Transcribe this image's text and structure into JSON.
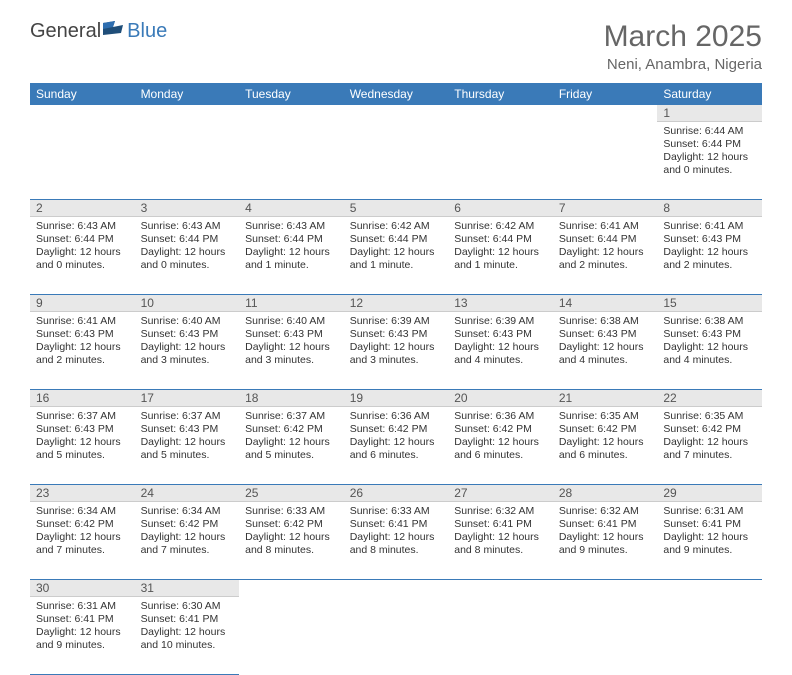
{
  "logo": {
    "general": "General",
    "blue": "Blue"
  },
  "header": {
    "month_title": "March 2025",
    "location": "Neni, Anambra, Nigeria"
  },
  "colors": {
    "header_bg": "#3a7ab8",
    "header_text": "#ffffff",
    "daynum_bg": "#e8e8e8",
    "row_border": "#3a7ab8",
    "text": "#333333"
  },
  "weekdays": [
    "Sunday",
    "Monday",
    "Tuesday",
    "Wednesday",
    "Thursday",
    "Friday",
    "Saturday"
  ],
  "weeks": [
    [
      null,
      null,
      null,
      null,
      null,
      null,
      {
        "n": "1",
        "sr": "Sunrise: 6:44 AM",
        "ss": "Sunset: 6:44 PM",
        "dl": "Daylight: 12 hours and 0 minutes."
      }
    ],
    [
      {
        "n": "2",
        "sr": "Sunrise: 6:43 AM",
        "ss": "Sunset: 6:44 PM",
        "dl": "Daylight: 12 hours and 0 minutes."
      },
      {
        "n": "3",
        "sr": "Sunrise: 6:43 AM",
        "ss": "Sunset: 6:44 PM",
        "dl": "Daylight: 12 hours and 0 minutes."
      },
      {
        "n": "4",
        "sr": "Sunrise: 6:43 AM",
        "ss": "Sunset: 6:44 PM",
        "dl": "Daylight: 12 hours and 1 minute."
      },
      {
        "n": "5",
        "sr": "Sunrise: 6:42 AM",
        "ss": "Sunset: 6:44 PM",
        "dl": "Daylight: 12 hours and 1 minute."
      },
      {
        "n": "6",
        "sr": "Sunrise: 6:42 AM",
        "ss": "Sunset: 6:44 PM",
        "dl": "Daylight: 12 hours and 1 minute."
      },
      {
        "n": "7",
        "sr": "Sunrise: 6:41 AM",
        "ss": "Sunset: 6:44 PM",
        "dl": "Daylight: 12 hours and 2 minutes."
      },
      {
        "n": "8",
        "sr": "Sunrise: 6:41 AM",
        "ss": "Sunset: 6:43 PM",
        "dl": "Daylight: 12 hours and 2 minutes."
      }
    ],
    [
      {
        "n": "9",
        "sr": "Sunrise: 6:41 AM",
        "ss": "Sunset: 6:43 PM",
        "dl": "Daylight: 12 hours and 2 minutes."
      },
      {
        "n": "10",
        "sr": "Sunrise: 6:40 AM",
        "ss": "Sunset: 6:43 PM",
        "dl": "Daylight: 12 hours and 3 minutes."
      },
      {
        "n": "11",
        "sr": "Sunrise: 6:40 AM",
        "ss": "Sunset: 6:43 PM",
        "dl": "Daylight: 12 hours and 3 minutes."
      },
      {
        "n": "12",
        "sr": "Sunrise: 6:39 AM",
        "ss": "Sunset: 6:43 PM",
        "dl": "Daylight: 12 hours and 3 minutes."
      },
      {
        "n": "13",
        "sr": "Sunrise: 6:39 AM",
        "ss": "Sunset: 6:43 PM",
        "dl": "Daylight: 12 hours and 4 minutes."
      },
      {
        "n": "14",
        "sr": "Sunrise: 6:38 AM",
        "ss": "Sunset: 6:43 PM",
        "dl": "Daylight: 12 hours and 4 minutes."
      },
      {
        "n": "15",
        "sr": "Sunrise: 6:38 AM",
        "ss": "Sunset: 6:43 PM",
        "dl": "Daylight: 12 hours and 4 minutes."
      }
    ],
    [
      {
        "n": "16",
        "sr": "Sunrise: 6:37 AM",
        "ss": "Sunset: 6:43 PM",
        "dl": "Daylight: 12 hours and 5 minutes."
      },
      {
        "n": "17",
        "sr": "Sunrise: 6:37 AM",
        "ss": "Sunset: 6:43 PM",
        "dl": "Daylight: 12 hours and 5 minutes."
      },
      {
        "n": "18",
        "sr": "Sunrise: 6:37 AM",
        "ss": "Sunset: 6:42 PM",
        "dl": "Daylight: 12 hours and 5 minutes."
      },
      {
        "n": "19",
        "sr": "Sunrise: 6:36 AM",
        "ss": "Sunset: 6:42 PM",
        "dl": "Daylight: 12 hours and 6 minutes."
      },
      {
        "n": "20",
        "sr": "Sunrise: 6:36 AM",
        "ss": "Sunset: 6:42 PM",
        "dl": "Daylight: 12 hours and 6 minutes."
      },
      {
        "n": "21",
        "sr": "Sunrise: 6:35 AM",
        "ss": "Sunset: 6:42 PM",
        "dl": "Daylight: 12 hours and 6 minutes."
      },
      {
        "n": "22",
        "sr": "Sunrise: 6:35 AM",
        "ss": "Sunset: 6:42 PM",
        "dl": "Daylight: 12 hours and 7 minutes."
      }
    ],
    [
      {
        "n": "23",
        "sr": "Sunrise: 6:34 AM",
        "ss": "Sunset: 6:42 PM",
        "dl": "Daylight: 12 hours and 7 minutes."
      },
      {
        "n": "24",
        "sr": "Sunrise: 6:34 AM",
        "ss": "Sunset: 6:42 PM",
        "dl": "Daylight: 12 hours and 7 minutes."
      },
      {
        "n": "25",
        "sr": "Sunrise: 6:33 AM",
        "ss": "Sunset: 6:42 PM",
        "dl": "Daylight: 12 hours and 8 minutes."
      },
      {
        "n": "26",
        "sr": "Sunrise: 6:33 AM",
        "ss": "Sunset: 6:41 PM",
        "dl": "Daylight: 12 hours and 8 minutes."
      },
      {
        "n": "27",
        "sr": "Sunrise: 6:32 AM",
        "ss": "Sunset: 6:41 PM",
        "dl": "Daylight: 12 hours and 8 minutes."
      },
      {
        "n": "28",
        "sr": "Sunrise: 6:32 AM",
        "ss": "Sunset: 6:41 PM",
        "dl": "Daylight: 12 hours and 9 minutes."
      },
      {
        "n": "29",
        "sr": "Sunrise: 6:31 AM",
        "ss": "Sunset: 6:41 PM",
        "dl": "Daylight: 12 hours and 9 minutes."
      }
    ],
    [
      {
        "n": "30",
        "sr": "Sunrise: 6:31 AM",
        "ss": "Sunset: 6:41 PM",
        "dl": "Daylight: 12 hours and 9 minutes."
      },
      {
        "n": "31",
        "sr": "Sunrise: 6:30 AM",
        "ss": "Sunset: 6:41 PM",
        "dl": "Daylight: 12 hours and 10 minutes."
      },
      null,
      null,
      null,
      null,
      null
    ]
  ]
}
